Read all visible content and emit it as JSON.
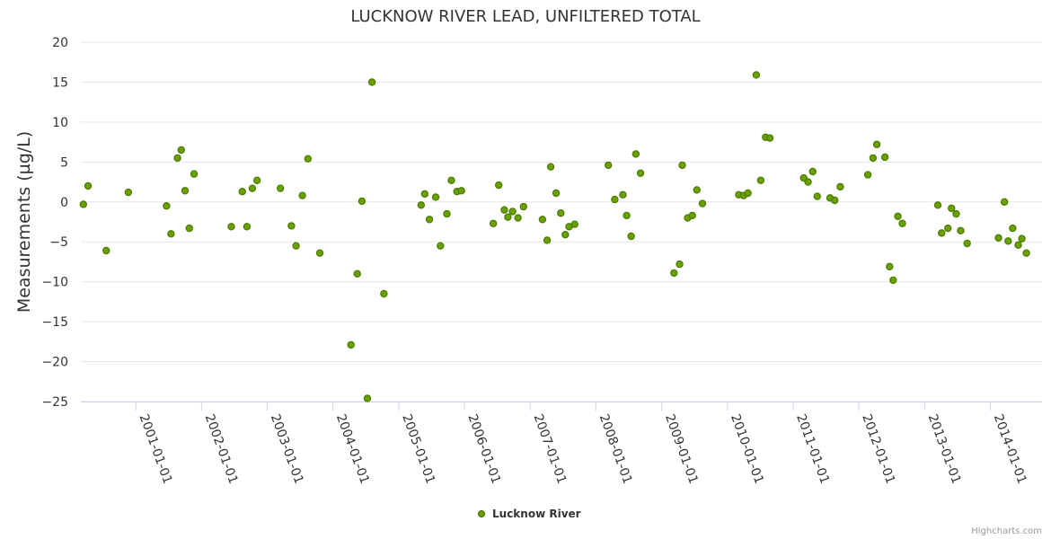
{
  "chart_data": {
    "type": "scatter",
    "title": "LUCKNOW RIVER LEAD, UNFILTERED TOTAL",
    "ylabel": "Measurements (µg/L)",
    "xlabel": "",
    "ylim": [
      -25,
      20
    ],
    "yticks": [
      20,
      15,
      10,
      5,
      0,
      -5,
      -10,
      -15,
      -20,
      -25
    ],
    "ytick_labels": [
      "20",
      "15",
      "10",
      "5",
      "0",
      "−5",
      "−10",
      "−15",
      "−20",
      "−25"
    ],
    "xlim": [
      "2000-03-01",
      "2014-10-15"
    ],
    "xticks": [
      "2001-01-01",
      "2002-01-01",
      "2003-01-01",
      "2004-01-01",
      "2005-01-01",
      "2006-01-01",
      "2007-01-01",
      "2008-01-01",
      "2009-01-01",
      "2010-01-01",
      "2011-01-01",
      "2012-01-01",
      "2013-01-01",
      "2014-01-01"
    ],
    "grid": true,
    "legend": "bottom-center",
    "credit": "Highcharts.com",
    "color": "#6aa000",
    "marker_stroke": "#4a7a00",
    "series": [
      {
        "name": "Lucknow River",
        "points": [
          {
            "x": "2000-03-15",
            "y": -0.3
          },
          {
            "x": "2000-04-10",
            "y": 2.0
          },
          {
            "x": "2000-07-20",
            "y": -6.1
          },
          {
            "x": "2000-11-20",
            "y": 1.2
          },
          {
            "x": "2001-06-20",
            "y": -0.5
          },
          {
            "x": "2001-07-15",
            "y": -4.0
          },
          {
            "x": "2001-08-20",
            "y": 5.5
          },
          {
            "x": "2001-09-10",
            "y": 6.5
          },
          {
            "x": "2001-10-01",
            "y": 1.4
          },
          {
            "x": "2001-10-25",
            "y": -3.3
          },
          {
            "x": "2001-11-20",
            "y": 3.5
          },
          {
            "x": "2002-06-15",
            "y": -3.1
          },
          {
            "x": "2002-08-15",
            "y": 1.3
          },
          {
            "x": "2002-09-10",
            "y": -3.1
          },
          {
            "x": "2002-10-10",
            "y": 1.7
          },
          {
            "x": "2002-11-05",
            "y": 2.7
          },
          {
            "x": "2003-03-15",
            "y": 1.7
          },
          {
            "x": "2003-05-15",
            "y": -3.0
          },
          {
            "x": "2003-06-10",
            "y": -5.5
          },
          {
            "x": "2003-07-15",
            "y": 0.8
          },
          {
            "x": "2003-08-15",
            "y": 5.4
          },
          {
            "x": "2003-10-20",
            "y": -6.4
          },
          {
            "x": "2004-04-10",
            "y": -17.9
          },
          {
            "x": "2004-05-15",
            "y": -9.0
          },
          {
            "x": "2004-06-10",
            "y": 0.1
          },
          {
            "x": "2004-07-10",
            "y": -24.6
          },
          {
            "x": "2004-08-05",
            "y": 15.0
          },
          {
            "x": "2004-10-10",
            "y": -11.5
          },
          {
            "x": "2005-05-05",
            "y": -0.4
          },
          {
            "x": "2005-05-25",
            "y": 1.0
          },
          {
            "x": "2005-06-20",
            "y": -2.2
          },
          {
            "x": "2005-07-25",
            "y": 0.6
          },
          {
            "x": "2005-08-20",
            "y": -5.5
          },
          {
            "x": "2005-09-25",
            "y": -1.5
          },
          {
            "x": "2005-10-20",
            "y": 2.7
          },
          {
            "x": "2005-11-20",
            "y": 1.3
          },
          {
            "x": "2005-12-15",
            "y": 1.4
          },
          {
            "x": "2006-06-10",
            "y": -2.7
          },
          {
            "x": "2006-07-10",
            "y": 2.1
          },
          {
            "x": "2006-08-10",
            "y": -1.0
          },
          {
            "x": "2006-08-30",
            "y": -1.9
          },
          {
            "x": "2006-09-25",
            "y": -1.2
          },
          {
            "x": "2006-10-25",
            "y": -2.0
          },
          {
            "x": "2006-11-25",
            "y": -0.6
          },
          {
            "x": "2007-03-10",
            "y": -2.2
          },
          {
            "x": "2007-04-05",
            "y": -4.8
          },
          {
            "x": "2007-04-25",
            "y": 4.4
          },
          {
            "x": "2007-05-25",
            "y": 1.1
          },
          {
            "x": "2007-06-20",
            "y": -1.4
          },
          {
            "x": "2007-07-15",
            "y": -4.1
          },
          {
            "x": "2007-08-05",
            "y": -3.1
          },
          {
            "x": "2007-09-05",
            "y": -2.8
          },
          {
            "x": "2008-03-10",
            "y": 4.6
          },
          {
            "x": "2008-04-15",
            "y": 0.3
          },
          {
            "x": "2008-05-30",
            "y": 0.9
          },
          {
            "x": "2008-06-20",
            "y": -1.7
          },
          {
            "x": "2008-07-15",
            "y": -4.3
          },
          {
            "x": "2008-08-10",
            "y": 6.0
          },
          {
            "x": "2008-09-05",
            "y": 3.6
          },
          {
            "x": "2009-03-10",
            "y": -8.9
          },
          {
            "x": "2009-04-10",
            "y": -7.8
          },
          {
            "x": "2009-04-25",
            "y": 4.6
          },
          {
            "x": "2009-05-25",
            "y": -2.0
          },
          {
            "x": "2009-06-20",
            "y": -1.7
          },
          {
            "x": "2009-07-15",
            "y": 1.5
          },
          {
            "x": "2009-08-15",
            "y": -0.2
          },
          {
            "x": "2010-03-05",
            "y": 0.9
          },
          {
            "x": "2010-04-01",
            "y": 0.8
          },
          {
            "x": "2010-04-25",
            "y": 1.1
          },
          {
            "x": "2010-06-10",
            "y": 15.9
          },
          {
            "x": "2010-07-05",
            "y": 2.7
          },
          {
            "x": "2010-08-01",
            "y": 8.1
          },
          {
            "x": "2010-08-25",
            "y": 8.0
          },
          {
            "x": "2011-03-01",
            "y": 3.0
          },
          {
            "x": "2011-03-25",
            "y": 2.5
          },
          {
            "x": "2011-04-20",
            "y": 3.8
          },
          {
            "x": "2011-05-15",
            "y": 0.7
          },
          {
            "x": "2011-07-25",
            "y": 0.5
          },
          {
            "x": "2011-08-20",
            "y": 0.2
          },
          {
            "x": "2011-09-20",
            "y": 1.9
          },
          {
            "x": "2012-02-20",
            "y": 3.4
          },
          {
            "x": "2012-03-20",
            "y": 5.5
          },
          {
            "x": "2012-04-10",
            "y": 7.2
          },
          {
            "x": "2012-05-25",
            "y": 5.6
          },
          {
            "x": "2012-06-20",
            "y": -8.1
          },
          {
            "x": "2012-07-10",
            "y": -9.8
          },
          {
            "x": "2012-08-05",
            "y": -1.8
          },
          {
            "x": "2012-08-30",
            "y": -2.7
          },
          {
            "x": "2013-03-15",
            "y": -0.4
          },
          {
            "x": "2013-04-05",
            "y": -3.9
          },
          {
            "x": "2013-05-10",
            "y": -3.3
          },
          {
            "x": "2013-05-30",
            "y": -0.8
          },
          {
            "x": "2013-06-25",
            "y": -1.5
          },
          {
            "x": "2013-07-20",
            "y": -3.6
          },
          {
            "x": "2013-08-25",
            "y": -5.2
          },
          {
            "x": "2014-02-15",
            "y": -4.5
          },
          {
            "x": "2014-03-20",
            "y": 0.0
          },
          {
            "x": "2014-04-10",
            "y": -4.9
          },
          {
            "x": "2014-05-05",
            "y": -3.3
          },
          {
            "x": "2014-06-05",
            "y": -5.4
          },
          {
            "x": "2014-06-25",
            "y": -4.6
          },
          {
            "x": "2014-07-20",
            "y": -6.4
          }
        ]
      }
    ]
  }
}
